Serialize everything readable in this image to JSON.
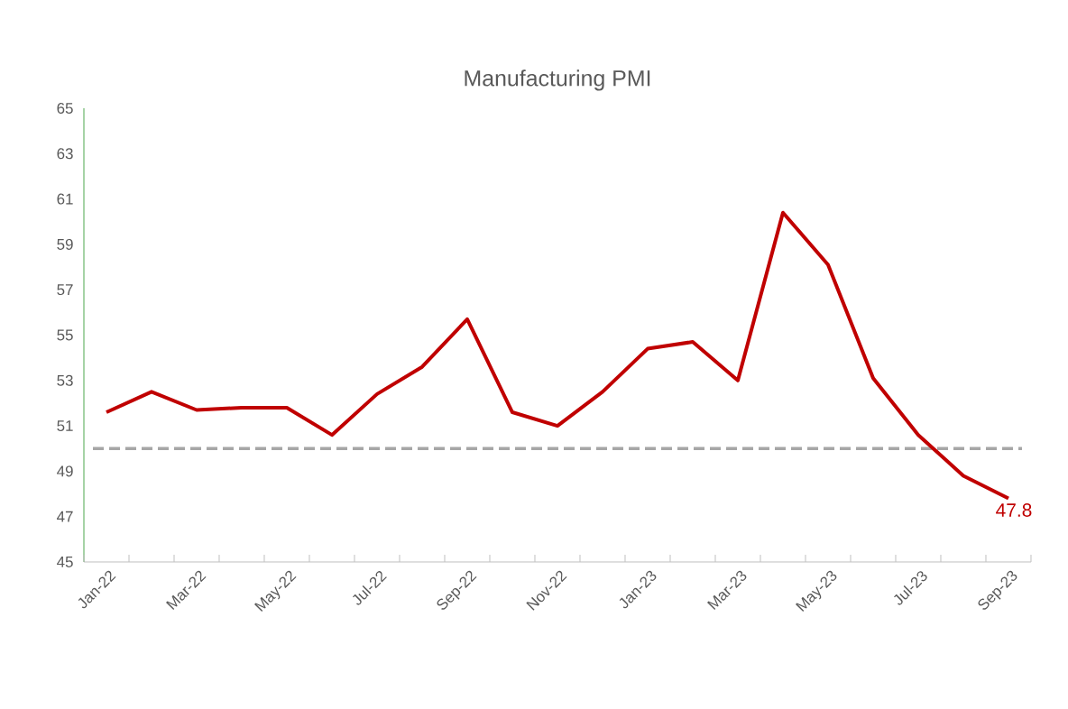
{
  "chart_data": {
    "type": "line",
    "title": "Manufacturing PMI",
    "categories": [
      "Jan-22",
      null,
      "Mar-22",
      null,
      "May-22",
      null,
      "Jul-22",
      null,
      "Sep-22",
      null,
      "Nov-22",
      null,
      "Jan-23",
      null,
      "Mar-23",
      null,
      "May-23",
      null,
      "Jul-23",
      null,
      "Sep-23"
    ],
    "series": [
      {
        "color": "#c00000",
        "values": [
          51.6,
          52.5,
          51.7,
          51.8,
          51.8,
          50.6,
          52.4,
          53.6,
          55.7,
          51.6,
          51.0,
          52.5,
          54.4,
          54.7,
          53.0,
          60.4,
          58.1,
          53.1,
          50.6,
          48.8,
          47.8
        ],
        "value_labels": [
          null,
          null,
          null,
          null,
          null,
          null,
          null,
          null,
          null,
          null,
          null,
          null,
          null,
          null,
          null,
          null,
          null,
          null,
          null,
          null,
          "47.8"
        ]
      }
    ],
    "ylim": [
      45,
      65
    ],
    "yticks": [
      45,
      47,
      49,
      51,
      53,
      55,
      57,
      59,
      61,
      63,
      65
    ],
    "ref_lines": [
      {
        "axis": "y",
        "value": 50,
        "color": "#a6a6a6",
        "line_style": "dashed"
      }
    ],
    "grid": false,
    "marker": "none"
  }
}
